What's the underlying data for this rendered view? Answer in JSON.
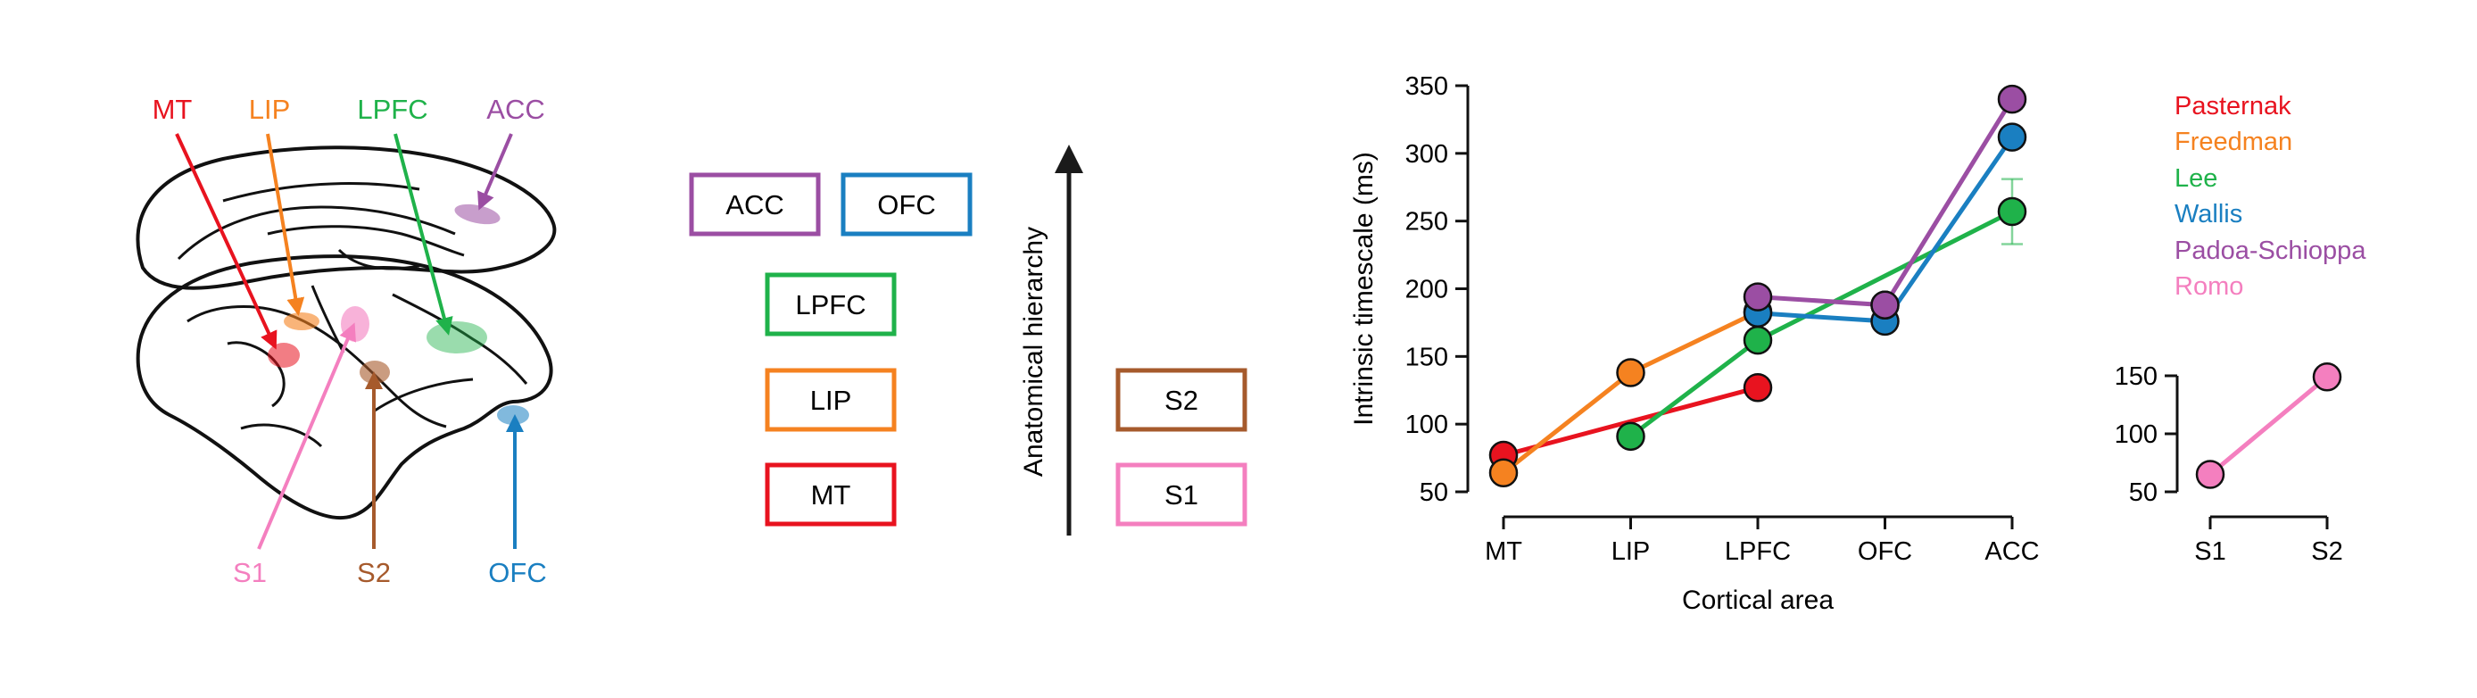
{
  "colors": {
    "MT": "#e8131f",
    "LIP": "#f58220",
    "LPFC": "#1fb24a",
    "ACC": "#9b4ea3",
    "OFC": "#1a7fc1",
    "S1": "#f47fbf",
    "S2": "#a65a2c",
    "Pasternak": "#e8131f",
    "Freedman": "#f58220",
    "Lee": "#1fb24a",
    "Wallis": "#1a7fc1",
    "Padoa-Schioppa": "#9b4ea3",
    "Romo": "#f47fbf"
  },
  "brain": {
    "labels": [
      "MT",
      "LIP",
      "LPFC",
      "ACC",
      "S1",
      "S2",
      "OFC"
    ]
  },
  "hierarchy": {
    "axis_label": "Anatomical hierarchy",
    "boxes": [
      "ACC",
      "OFC",
      "LPFC",
      "LIP",
      "MT",
      "S2",
      "S1"
    ]
  },
  "chart_data": [
    {
      "type": "line",
      "title": "",
      "xlabel": "Cortical area",
      "ylabel": "Intrinsic timescale (ms)",
      "categories": [
        "MT",
        "LIP",
        "LPFC",
        "OFC",
        "ACC"
      ],
      "yticks": [
        50,
        100,
        150,
        200,
        250,
        300,
        350
      ],
      "ylim": [
        50,
        350
      ],
      "legend_position": "right",
      "series": [
        {
          "name": "Pasternak",
          "x": [
            "MT",
            "LPFC"
          ],
          "values": [
            77,
            127
          ]
        },
        {
          "name": "Freedman",
          "x": [
            "MT",
            "LIP",
            "LPFC"
          ],
          "values": [
            64,
            138,
            183
          ]
        },
        {
          "name": "Lee",
          "x": [
            "LIP",
            "LPFC",
            "ACC"
          ],
          "values": [
            91,
            162,
            257
          ],
          "error": {
            "ACC": [
              233,
              281
            ]
          }
        },
        {
          "name": "Wallis",
          "x": [
            "LPFC",
            "OFC",
            "ACC"
          ],
          "values": [
            182,
            176,
            312
          ]
        },
        {
          "name": "Padoa-Schioppa",
          "x": [
            "LPFC",
            "OFC"
          ],
          "values": [
            194,
            188
          ]
        },
        {
          "name": "Padoa-Schioppa",
          "x": [
            "OFC",
            "ACC"
          ],
          "values": [
            188,
            340
          ]
        }
      ]
    },
    {
      "type": "line",
      "title": "",
      "categories": [
        "S1",
        "S2"
      ],
      "yticks": [
        50,
        100,
        150
      ],
      "ylim": [
        50,
        150
      ],
      "series": [
        {
          "name": "Romo",
          "x": [
            "S1",
            "S2"
          ],
          "values": [
            65,
            149
          ]
        }
      ]
    }
  ],
  "legend": [
    "Pasternak",
    "Freedman",
    "Lee",
    "Wallis",
    "Padoa-Schioppa",
    "Romo"
  ]
}
